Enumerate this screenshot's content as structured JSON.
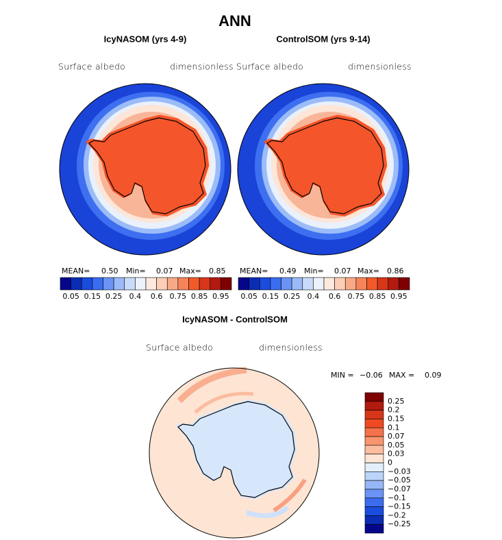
{
  "title": "ANN",
  "panels": [
    {
      "title": "IcyNASOM (yrs 4-9)",
      "variable": "Surface albedo",
      "units": "dimensionless",
      "stats": [
        "MEAN=",
        "0.50",
        "Min=",
        "0.07",
        "Max=",
        "0.85"
      ]
    },
    {
      "title": "ControlSOM (yrs 9-14)",
      "variable": "Surface albedo",
      "units": "dimensionless",
      "stats": [
        "MEAN=",
        "0.49",
        "Min=",
        "0.07",
        "Max=",
        "0.86"
      ]
    }
  ],
  "colorbar": {
    "colors": [
      "#06068c",
      "#0a2db4",
      "#1a4ddd",
      "#3a6cf0",
      "#6a93f5",
      "#9bbbf8",
      "#c9dbfa",
      "#ecf3fc",
      "#fde9dd",
      "#fbceb5",
      "#f8aa87",
      "#f6845b",
      "#f25a2a",
      "#d8361a",
      "#b21a10",
      "#7f0000"
    ],
    "labels": [
      "0.05",
      "0.15",
      "0.25",
      "0.4",
      "0.6",
      "0.75",
      "0.85",
      "0.95"
    ]
  },
  "difference": {
    "title": "IcyNASOM - ControlSOM",
    "variable": "Surface albedo",
    "units": "dimensionless",
    "stats": [
      "MIN =",
      "−0.06",
      "MAX =",
      "0.09"
    ],
    "colorbar": {
      "colors": [
        "#7f0000",
        "#b21a10",
        "#d8361a",
        "#f04a22",
        "#f6724a",
        "#f8956e",
        "#fbbd9f",
        "#fde4d3",
        "#e4effc",
        "#bcd4fa",
        "#96b7f7",
        "#6a93f5",
        "#3a6cf0",
        "#1a4ddd",
        "#0a2db4",
        "#06068c"
      ],
      "labels": [
        "0.25",
        "0.2",
        "0.15",
        "0.1",
        "0.07",
        "0.05",
        "0.03",
        "0",
        "−0.03",
        "−0.05",
        "−0.07",
        "−0.1",
        "−0.15",
        "−0.2",
        "−0.25"
      ]
    }
  }
}
